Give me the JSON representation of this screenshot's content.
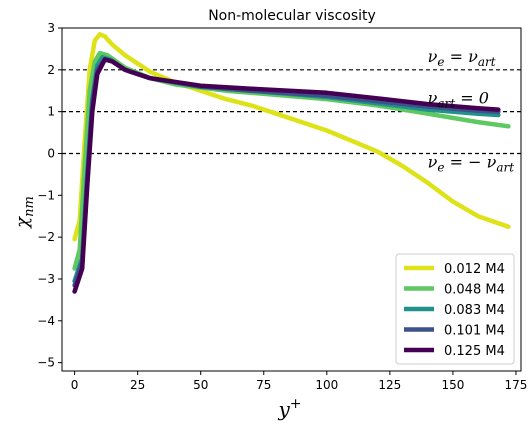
{
  "chart_data": {
    "type": "line",
    "title": "Non-molecular viscosity",
    "xlabel": "y⁺",
    "ylabel": "χ_nm",
    "xlim": [
      -5,
      177
    ],
    "ylim": [
      -5.2,
      3.0
    ],
    "xticks": [
      0,
      25,
      50,
      75,
      100,
      125,
      150,
      175
    ],
    "yticks": [
      -5,
      -4,
      -3,
      -2,
      -1,
      0,
      1,
      2,
      3
    ],
    "grid": false,
    "legend_position": "lower-right",
    "reference_lines": [
      {
        "y": 2,
        "label_main": "ν",
        "label_sub1": "e",
        "label_eq": " = ν",
        "label_sub2": "art"
      },
      {
        "y": 1,
        "label_main": "ν",
        "label_sub1": "art",
        "label_eq": " = 0",
        "label_sub2": ""
      },
      {
        "y": 0,
        "label_main": "ν",
        "label_sub1": "e",
        "label_eq": " = − ν",
        "label_sub2": "art"
      }
    ],
    "series": [
      {
        "name": "0.012 M4",
        "color": "#dde318",
        "points": [
          [
            0,
            -2.05
          ],
          [
            2,
            -1.6
          ],
          [
            4,
            0.3
          ],
          [
            6,
            2.0
          ],
          [
            8,
            2.7
          ],
          [
            10,
            2.85
          ],
          [
            12,
            2.8
          ],
          [
            15,
            2.6
          ],
          [
            20,
            2.35
          ],
          [
            30,
            1.95
          ],
          [
            40,
            1.7
          ],
          [
            50,
            1.5
          ],
          [
            60,
            1.3
          ],
          [
            70,
            1.15
          ],
          [
            80,
            0.95
          ],
          [
            90,
            0.75
          ],
          [
            100,
            0.55
          ],
          [
            110,
            0.3
          ],
          [
            120,
            0.05
          ],
          [
            130,
            -0.3
          ],
          [
            140,
            -0.7
          ],
          [
            150,
            -1.15
          ],
          [
            160,
            -1.5
          ],
          [
            172,
            -1.75
          ]
        ]
      },
      {
        "name": "0.048 M4",
        "color": "#5ec962",
        "points": [
          [
            0,
            -2.75
          ],
          [
            2,
            -2.3
          ],
          [
            4,
            -0.3
          ],
          [
            6,
            1.5
          ],
          [
            8,
            2.2
          ],
          [
            10,
            2.4
          ],
          [
            13,
            2.35
          ],
          [
            20,
            2.05
          ],
          [
            30,
            1.8
          ],
          [
            40,
            1.65
          ],
          [
            60,
            1.5
          ],
          [
            80,
            1.4
          ],
          [
            100,
            1.3
          ],
          [
            120,
            1.15
          ],
          [
            140,
            0.95
          ],
          [
            160,
            0.75
          ],
          [
            172,
            0.65
          ]
        ]
      },
      {
        "name": "0.083 M4",
        "color": "#21918c",
        "points": [
          [
            0,
            -3.05
          ],
          [
            3,
            -2.5
          ],
          [
            5,
            -0.5
          ],
          [
            7,
            1.3
          ],
          [
            9,
            2.1
          ],
          [
            11,
            2.3
          ],
          [
            14,
            2.25
          ],
          [
            20,
            2.0
          ],
          [
            30,
            1.8
          ],
          [
            50,
            1.6
          ],
          [
            70,
            1.5
          ],
          [
            100,
            1.35
          ],
          [
            120,
            1.2
          ],
          [
            140,
            1.05
          ],
          [
            160,
            0.95
          ],
          [
            168,
            0.92
          ]
        ]
      },
      {
        "name": "0.101 M4",
        "color": "#3b528b",
        "points": [
          [
            0,
            -3.15
          ],
          [
            3,
            -2.6
          ],
          [
            5,
            -0.6
          ],
          [
            7,
            1.2
          ],
          [
            9,
            2.0
          ],
          [
            12,
            2.25
          ],
          [
            15,
            2.2
          ],
          [
            20,
            2.0
          ],
          [
            30,
            1.8
          ],
          [
            50,
            1.6
          ],
          [
            70,
            1.5
          ],
          [
            100,
            1.38
          ],
          [
            120,
            1.25
          ],
          [
            140,
            1.12
          ],
          [
            160,
            1.02
          ],
          [
            168,
            1.0
          ]
        ]
      },
      {
        "name": "0.125 M4",
        "color": "#440154",
        "points": [
          [
            0,
            -3.3
          ],
          [
            3,
            -2.75
          ],
          [
            5,
            -0.8
          ],
          [
            7,
            1.0
          ],
          [
            9,
            1.9
          ],
          [
            12,
            2.25
          ],
          [
            15,
            2.2
          ],
          [
            20,
            2.0
          ],
          [
            30,
            1.8
          ],
          [
            50,
            1.62
          ],
          [
            70,
            1.55
          ],
          [
            100,
            1.45
          ],
          [
            120,
            1.32
          ],
          [
            140,
            1.18
          ],
          [
            160,
            1.08
          ],
          [
            168,
            1.05
          ]
        ]
      }
    ]
  }
}
